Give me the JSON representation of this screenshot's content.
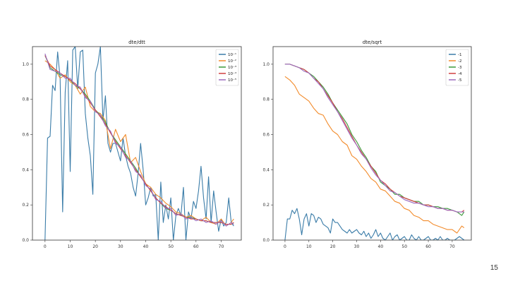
{
  "slide": {
    "page_number": "15"
  },
  "colors": {
    "c1": "#3a7ca8",
    "c2": "#f28b2b",
    "c3": "#3a9a3a",
    "c4": "#d04040",
    "c5": "#9a6bbf"
  },
  "chart_data": [
    {
      "type": "line",
      "title": "dte/dtt",
      "xlabel": "",
      "ylabel": "",
      "xlim": [
        -5,
        78
      ],
      "ylim": [
        0,
        1.1
      ],
      "xticks": [
        0,
        10,
        20,
        30,
        40,
        50,
        60,
        70
      ],
      "yticks": [
        0.0,
        0.2,
        0.4,
        0.6,
        0.8,
        1.0
      ],
      "legend": "top-right",
      "series": [
        {
          "name": "10⁻¹",
          "color_key": "c1",
          "x": [
            0,
            1,
            2,
            3,
            4,
            5,
            6,
            7,
            8,
            9,
            10,
            11,
            12,
            13,
            14,
            15,
            16,
            17,
            18,
            19,
            20,
            21,
            22,
            23,
            24,
            25,
            26,
            27,
            28,
            29,
            30,
            31,
            32,
            33,
            34,
            35,
            36,
            37,
            38,
            39,
            40,
            41,
            42,
            43,
            44,
            45,
            46,
            47,
            48,
            49,
            50,
            51,
            52,
            53,
            54,
            55,
            56,
            57,
            58,
            59,
            60,
            61,
            62,
            63,
            64,
            65,
            66,
            67,
            68,
            69,
            70,
            71,
            72,
            73,
            74,
            75
          ],
          "y": [
            0.0,
            0.58,
            0.59,
            0.88,
            0.85,
            1.07,
            0.92,
            0.16,
            0.84,
            1.02,
            0.39,
            1.08,
            1.1,
            0.86,
            1.07,
            1.08,
            0.72,
            0.58,
            0.48,
            0.26,
            0.95,
            1.0,
            1.1,
            0.68,
            0.82,
            0.55,
            0.5,
            0.55,
            0.55,
            0.5,
            0.45,
            0.58,
            0.48,
            0.42,
            0.38,
            0.3,
            0.25,
            0.38,
            0.55,
            0.4,
            0.2,
            0.24,
            0.3,
            0.25,
            0.26,
            0.0,
            0.33,
            0.1,
            0.2,
            0.12,
            0.24,
            0.0,
            0.14,
            0.18,
            0.14,
            0.3,
            0.0,
            0.16,
            0.12,
            0.22,
            0.18,
            0.28,
            0.42,
            0.24,
            0.12,
            0.36,
            0.1,
            0.28,
            0.16,
            0.05,
            0.12,
            0.08,
            0.1,
            0.24,
            0.1,
            0.08
          ]
        },
        {
          "name": "10⁻²",
          "color_key": "c2",
          "x": [
            0,
            2,
            4,
            6,
            8,
            10,
            12,
            14,
            16,
            18,
            20,
            22,
            24,
            26,
            28,
            30,
            32,
            34,
            36,
            38,
            40,
            42,
            44,
            46,
            48,
            50,
            52,
            54,
            56,
            58,
            60,
            62,
            64,
            66,
            68,
            70,
            72,
            74,
            75
          ],
          "y": [
            1.02,
            1.0,
            0.97,
            0.92,
            0.94,
            0.9,
            0.88,
            0.83,
            0.87,
            0.76,
            0.73,
            0.72,
            0.68,
            0.52,
            0.63,
            0.56,
            0.6,
            0.44,
            0.47,
            0.39,
            0.32,
            0.3,
            0.26,
            0.24,
            0.21,
            0.19,
            0.16,
            0.15,
            0.13,
            0.14,
            0.12,
            0.11,
            0.13,
            0.1,
            0.09,
            0.12,
            0.08,
            0.1,
            0.12
          ]
        },
        {
          "name": "10⁻³",
          "color_key": "c3",
          "x": [
            0,
            2,
            4,
            6,
            8,
            10,
            12,
            14,
            16,
            18,
            20,
            22,
            24,
            26,
            28,
            30,
            32,
            34,
            36,
            38,
            40,
            42,
            44,
            46,
            48,
            50,
            52,
            54,
            56,
            58,
            60,
            62,
            64,
            66,
            68,
            70,
            72,
            74,
            75
          ],
          "y": [
            1.05,
            0.98,
            0.96,
            0.94,
            0.93,
            0.91,
            0.88,
            0.86,
            0.83,
            0.79,
            0.74,
            0.71,
            0.67,
            0.61,
            0.57,
            0.53,
            0.49,
            0.45,
            0.41,
            0.36,
            0.32,
            0.28,
            0.24,
            0.21,
            0.18,
            0.17,
            0.15,
            0.14,
            0.13,
            0.13,
            0.12,
            0.11,
            0.11,
            0.1,
            0.1,
            0.1,
            0.09,
            0.09,
            0.1
          ]
        },
        {
          "name": "10⁻⁴",
          "color_key": "c4",
          "x": [
            0,
            2,
            4,
            6,
            8,
            10,
            12,
            14,
            16,
            18,
            20,
            22,
            24,
            26,
            28,
            30,
            32,
            34,
            36,
            38,
            40,
            42,
            44,
            46,
            48,
            50,
            52,
            54,
            56,
            58,
            60,
            62,
            64,
            66,
            68,
            70,
            72,
            74,
            75
          ],
          "y": [
            1.05,
            0.99,
            0.97,
            0.95,
            0.93,
            0.91,
            0.89,
            0.86,
            0.82,
            0.78,
            0.74,
            0.7,
            0.66,
            0.61,
            0.56,
            0.52,
            0.48,
            0.44,
            0.4,
            0.36,
            0.32,
            0.28,
            0.24,
            0.21,
            0.19,
            0.17,
            0.15,
            0.14,
            0.13,
            0.12,
            0.12,
            0.11,
            0.11,
            0.1,
            0.1,
            0.1,
            0.09,
            0.09,
            0.1
          ]
        },
        {
          "name": "10⁻⁵",
          "color_key": "c5",
          "x": [
            0,
            2,
            4,
            6,
            8,
            10,
            12,
            14,
            16,
            18,
            20,
            22,
            24,
            26,
            28,
            30,
            32,
            34,
            36,
            38,
            40,
            42,
            44,
            46,
            48,
            50,
            52,
            54,
            56,
            58,
            60,
            62,
            64,
            66,
            68,
            70,
            72,
            74,
            75
          ],
          "y": [
            1.06,
            0.97,
            0.96,
            0.95,
            0.92,
            0.92,
            0.88,
            0.87,
            0.81,
            0.79,
            0.73,
            0.71,
            0.65,
            0.62,
            0.55,
            0.53,
            0.47,
            0.45,
            0.39,
            0.37,
            0.31,
            0.29,
            0.23,
            0.22,
            0.18,
            0.18,
            0.14,
            0.15,
            0.12,
            0.13,
            0.11,
            0.12,
            0.1,
            0.11,
            0.09,
            0.11,
            0.08,
            0.1,
            0.09
          ]
        }
      ]
    },
    {
      "type": "line",
      "title": "dte/sqrt",
      "xlabel": "",
      "ylabel": "",
      "xlim": [
        -5,
        78
      ],
      "ylim": [
        0,
        1.1
      ],
      "xticks": [
        0,
        10,
        20,
        30,
        40,
        50,
        60,
        70
      ],
      "yticks": [
        0.0,
        0.2,
        0.4,
        0.6,
        0.8,
        1.0
      ],
      "legend": "top-right",
      "series": [
        {
          "name": "-1",
          "color_key": "c1",
          "x": [
            0,
            1,
            2,
            3,
            4,
            5,
            6,
            7,
            8,
            9,
            10,
            11,
            12,
            13,
            14,
            15,
            16,
            17,
            18,
            19,
            20,
            21,
            22,
            23,
            24,
            25,
            26,
            27,
            28,
            29,
            30,
            31,
            32,
            33,
            34,
            35,
            36,
            37,
            38,
            39,
            40,
            41,
            42,
            43,
            44,
            45,
            46,
            47,
            48,
            49,
            50,
            51,
            52,
            53,
            54,
            55,
            56,
            57,
            58,
            59,
            60,
            61,
            62,
            63,
            64,
            65,
            66,
            67,
            68,
            69,
            70,
            71,
            72,
            73,
            74,
            75
          ],
          "y": [
            0.0,
            0.12,
            0.12,
            0.17,
            0.15,
            0.18,
            0.12,
            0.03,
            0.12,
            0.15,
            0.08,
            0.15,
            0.14,
            0.1,
            0.13,
            0.12,
            0.09,
            0.08,
            0.07,
            0.04,
            0.12,
            0.1,
            0.1,
            0.08,
            0.06,
            0.05,
            0.04,
            0.06,
            0.04,
            0.05,
            0.06,
            0.04,
            0.03,
            0.05,
            0.02,
            0.04,
            0.01,
            0.03,
            0.06,
            0.02,
            0.04,
            0.01,
            0.0,
            0.02,
            0.04,
            0.0,
            0.02,
            0.03,
            0.0,
            0.01,
            0.02,
            0.0,
            0.0,
            0.03,
            0.01,
            0.0,
            0.02,
            0.0,
            0.0,
            0.01,
            0.02,
            0.0,
            0.0,
            0.01,
            0.0,
            0.02,
            0.0,
            0.0,
            0.01,
            0.0,
            0.0,
            0.0,
            0.01,
            0.02,
            0.01,
            0.0
          ]
        },
        {
          "name": "-2",
          "color_key": "c2",
          "x": [
            0,
            2,
            4,
            6,
            8,
            10,
            12,
            14,
            16,
            18,
            20,
            22,
            24,
            26,
            28,
            30,
            32,
            34,
            36,
            38,
            40,
            42,
            44,
            46,
            48,
            50,
            52,
            54,
            56,
            58,
            60,
            62,
            64,
            66,
            68,
            70,
            72,
            74,
            75
          ],
          "y": [
            0.93,
            0.91,
            0.88,
            0.83,
            0.81,
            0.79,
            0.75,
            0.72,
            0.71,
            0.66,
            0.62,
            0.6,
            0.56,
            0.54,
            0.48,
            0.46,
            0.42,
            0.39,
            0.35,
            0.33,
            0.29,
            0.28,
            0.25,
            0.22,
            0.21,
            0.18,
            0.17,
            0.14,
            0.13,
            0.11,
            0.11,
            0.09,
            0.08,
            0.07,
            0.06,
            0.06,
            0.04,
            0.08,
            0.07
          ]
        },
        {
          "name": "-3",
          "color_key": "c3",
          "x": [
            0,
            2,
            4,
            6,
            8,
            10,
            12,
            14,
            16,
            18,
            20,
            22,
            24,
            26,
            28,
            30,
            32,
            34,
            36,
            38,
            40,
            42,
            44,
            46,
            48,
            50,
            52,
            54,
            56,
            58,
            60,
            62,
            64,
            66,
            68,
            70,
            72,
            74,
            75
          ],
          "y": [
            1.0,
            1.0,
            0.99,
            0.98,
            0.97,
            0.95,
            0.93,
            0.9,
            0.87,
            0.83,
            0.78,
            0.74,
            0.7,
            0.66,
            0.6,
            0.56,
            0.51,
            0.47,
            0.42,
            0.39,
            0.33,
            0.31,
            0.29,
            0.26,
            0.26,
            0.24,
            0.23,
            0.22,
            0.22,
            0.2,
            0.2,
            0.19,
            0.19,
            0.18,
            0.18,
            0.17,
            0.16,
            0.14,
            0.16
          ]
        },
        {
          "name": "-4",
          "color_key": "c4",
          "x": [
            0,
            2,
            4,
            6,
            8,
            10,
            12,
            14,
            16,
            18,
            20,
            22,
            24,
            26,
            28,
            30,
            32,
            34,
            36,
            38,
            40,
            42,
            44,
            46,
            48,
            50,
            52,
            54,
            56,
            58,
            60,
            62,
            64,
            66,
            68,
            70,
            72,
            74,
            75
          ],
          "y": [
            1.0,
            1.0,
            0.99,
            0.98,
            0.97,
            0.95,
            0.92,
            0.9,
            0.86,
            0.82,
            0.78,
            0.73,
            0.69,
            0.64,
            0.59,
            0.54,
            0.5,
            0.46,
            0.42,
            0.38,
            0.34,
            0.32,
            0.29,
            0.27,
            0.25,
            0.24,
            0.23,
            0.22,
            0.21,
            0.2,
            0.2,
            0.19,
            0.18,
            0.18,
            0.17,
            0.17,
            0.16,
            0.16,
            0.17
          ]
        },
        {
          "name": "-5",
          "color_key": "c5",
          "x": [
            0,
            2,
            4,
            6,
            8,
            10,
            12,
            14,
            16,
            18,
            20,
            22,
            24,
            26,
            28,
            30,
            32,
            34,
            36,
            38,
            40,
            42,
            44,
            46,
            48,
            50,
            52,
            54,
            56,
            58,
            60,
            62,
            64,
            66,
            68,
            70,
            72,
            74,
            75
          ],
          "y": [
            1.0,
            1.0,
            0.99,
            0.98,
            0.96,
            0.95,
            0.92,
            0.89,
            0.86,
            0.81,
            0.77,
            0.73,
            0.68,
            0.63,
            0.58,
            0.54,
            0.49,
            0.46,
            0.41,
            0.37,
            0.34,
            0.31,
            0.28,
            0.27,
            0.25,
            0.23,
            0.22,
            0.21,
            0.21,
            0.2,
            0.19,
            0.19,
            0.18,
            0.18,
            0.17,
            0.17,
            0.16,
            0.16,
            0.16
          ]
        }
      ]
    }
  ]
}
